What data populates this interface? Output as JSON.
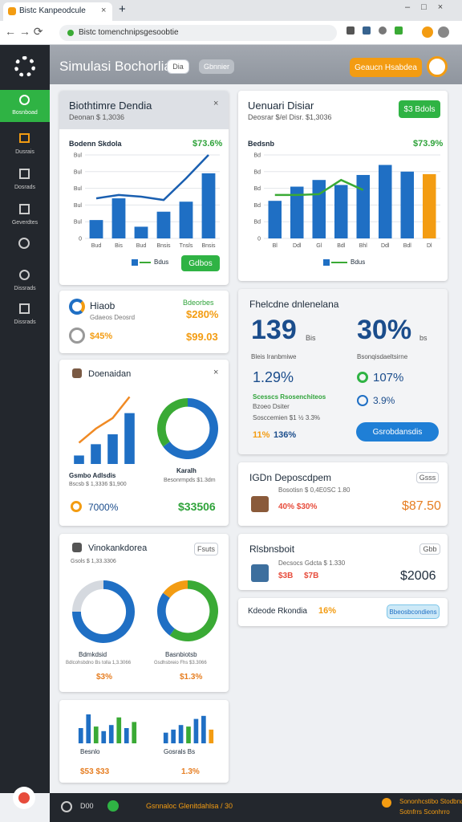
{
  "browser": {
    "tab_title": "Bistc Kanpeodcule",
    "url": "Bistc tomenchnipsgesoobtie"
  },
  "sidebar": {
    "items": [
      "Bosnboad",
      "Dusrais",
      "Dosrads",
      "Geverdtes",
      "Dissrads",
      "Dissrads"
    ]
  },
  "header": {
    "title": "Simulasi Bochorlia",
    "chip1": "Dia",
    "chip2": "Gbnnier",
    "button": "Geaucn Hsabdea"
  },
  "cards": {
    "a": {
      "title": "Biothtimre Dendia",
      "subtitle": "Deonan $ 1,3036",
      "chart_title": "Bodenn Skdola",
      "chart_value": "$73.6%",
      "button": "Gdbos"
    },
    "b": {
      "title": "Uenuari Disiar",
      "subtitle": "Deosrar $/el Disr. $1,3036",
      "button": "$3 Bdols",
      "chart_title": "Bedsnb",
      "chart_value": "$73.9%"
    },
    "c": {
      "title": "Hiaob",
      "label": "Gdaeos Deosrd",
      "value1": "Bdeorbes",
      "value2": "$280%",
      "value3": "$45%",
      "value4": "$99.03"
    },
    "d": {
      "title": "Fhelcdne dnlenelana",
      "big1": "139",
      "big1_unit": "Bis",
      "big2": "30%",
      "big2_unit": "bs",
      "sub1": "Bleis Iranbmiwe",
      "sub2": "Bsonqisdaeltsirne",
      "stat1": "1.29%",
      "stat2": "107%",
      "stat3": "3.9%",
      "green_text": "Scesscs Rsosenchiteos",
      "small1": "Bzoeo Dsiter",
      "small2": "Sosccemien $1 ½ 3.3%",
      "orange1": "11%",
      "orange2": "136%",
      "button": "Gsrobdansdis"
    },
    "e": {
      "title": "Doenaidan",
      "label1": "Gsmbo Adlsdis",
      "label2": "Bscsb $ 1,3336 $1,900",
      "label3": "Karalh",
      "label4": "Besonrmpds $1.3dm",
      "stat1": "7000%",
      "stat2": "$33506"
    },
    "f": {
      "title": "IGDn Deposcdpem",
      "chip": "Gsss",
      "line": "Bosotisn $ 0,4E0SC 1.80",
      "value1": "40% $30%",
      "value2": "$87.50"
    },
    "g": {
      "title": "Vinokankdorea",
      "chip": "Fsuts",
      "subtitle": "Gsols $ 1,33.3306",
      "label1": "Bdmkdsid",
      "label2": "Basnbiotsb",
      "text1": "Bdlcohsbdno Bs tolla 1,3.3066",
      "text2": "Gsdhsbreio Fhs $3.3066",
      "value1": "$3%",
      "value2": "$1.3%"
    },
    "h": {
      "title": "Rlsbnsboit",
      "chip": "Gbb",
      "line": "Decsocs Gdcta $ 1.330",
      "value1": "$3B",
      "value2": "$7B",
      "value3": "$2006"
    },
    "i": {
      "text": "Kdeode Rkondia",
      "value": "16%",
      "button": "Bbeosbcondiens"
    },
    "j": {
      "label1": "Besnlo",
      "label2": "Gosrals Bs",
      "value1": "$53 $33",
      "value2": "1.3%"
    }
  },
  "footer": {
    "left": "D00",
    "middle": "Gsnnaloc Glenitdahlsa / 30",
    "right1": "Sononhcstibo Stodbndcoha",
    "right2": "Sotnfrrs Sconhrro"
  },
  "chart_data": [
    {
      "type": "bar",
      "categories": [
        "Bud",
        "Bis",
        "Bud",
        "Bnsis",
        "Tnsls",
        "Bnsis"
      ],
      "series": [
        {
          "name": "Bdus",
          "color": "#1f6fc4",
          "values": [
            22,
            48,
            14,
            32,
            44,
            78
          ]
        }
      ],
      "line": {
        "color": "#1a5fb0",
        "values": [
          48,
          52,
          50,
          46,
          72,
          100
        ]
      },
      "ylim": [
        0,
        100
      ],
      "yticks": [
        0,
        {
          "value": 20,
          "label": "Bul"
        },
        {
          "value": 40,
          "label": "Bul"
        },
        {
          "value": 60,
          "label": "Bul"
        },
        {
          "value": 80,
          "label": "Bul"
        },
        {
          "value": 100,
          "label": "Bul"
        }
      ],
      "grid": true
    },
    {
      "type": "bar",
      "categories": [
        "Bl",
        "Ddl",
        "Gl",
        "Bdl",
        "Bhl",
        "Ddl",
        "Bdl",
        "Dl"
      ],
      "series": [
        {
          "name": "Bdus",
          "color": "#1f6fc4",
          "values": [
            45,
            62,
            70,
            64,
            76,
            88,
            80,
            77
          ]
        }
      ],
      "colors": [
        "#1f6fc4",
        "#1f6fc4",
        "#1f6fc4",
        "#1f6fc4",
        "#1f6fc4",
        "#1f6fc4",
        "#1f6fc4",
        "#f39c12"
      ],
      "line": {
        "color": "#3aaa35",
        "values": [
          52,
          52,
          53,
          70,
          58,
          null,
          null,
          null
        ]
      },
      "ylim": [
        0,
        100
      ],
      "yticks": [
        0,
        {
          "value": 20,
          "label": "Bd"
        },
        {
          "value": 40,
          "label": "Bd"
        },
        {
          "value": 60,
          "label": "Bd"
        },
        {
          "value": 80,
          "label": "Bd"
        },
        {
          "value": 100,
          "label": "Bd"
        }
      ],
      "grid": true
    },
    {
      "type": "bar",
      "series": [
        {
          "color": "#1f6fc4",
          "values": [
            12,
            28,
            42,
            72
          ]
        }
      ],
      "line": {
        "color": "#f08a24",
        "values": [
          30,
          50,
          65,
          95
        ]
      },
      "ylim": [
        0,
        100
      ],
      "grid": false
    },
    {
      "type": "pie",
      "values": [
        65,
        35
      ],
      "colors": [
        "#1f6fc4",
        "#3aaa35"
      ]
    },
    {
      "type": "pie",
      "values": [
        75,
        25
      ],
      "colors": [
        "#1f6fc4",
        "#d5d9df"
      ]
    },
    {
      "type": "pie",
      "values": [
        60,
        25,
        15
      ],
      "colors": [
        "#3aaa35",
        "#1f6fc4",
        "#f39c12"
      ]
    },
    {
      "type": "bar",
      "series": [
        {
          "color": "#1f6fc4",
          "values": [
            50,
            95,
            55,
            40,
            60,
            85,
            50,
            70
          ]
        }
      ],
      "colors": [
        "#1f6fc4",
        "#1f6fc4",
        "#3aaa35",
        "#1f6fc4",
        "#1f6fc4",
        "#3aaa35",
        "#1f6fc4",
        "#3aaa35"
      ],
      "ylim": [
        0,
        100
      ],
      "grid": false
    },
    {
      "type": "bar",
      "series": [
        {
          "color": "#1f6fc4",
          "values": [
            35,
            45,
            60,
            55,
            80,
            90,
            45
          ]
        }
      ],
      "colors": [
        "#1f6fc4",
        "#1f6fc4",
        "#1f6fc4",
        "#3aaa35",
        "#1f6fc4",
        "#1f6fc4",
        "#f39c12"
      ],
      "ylim": [
        0,
        100
      ],
      "grid": false
    }
  ]
}
